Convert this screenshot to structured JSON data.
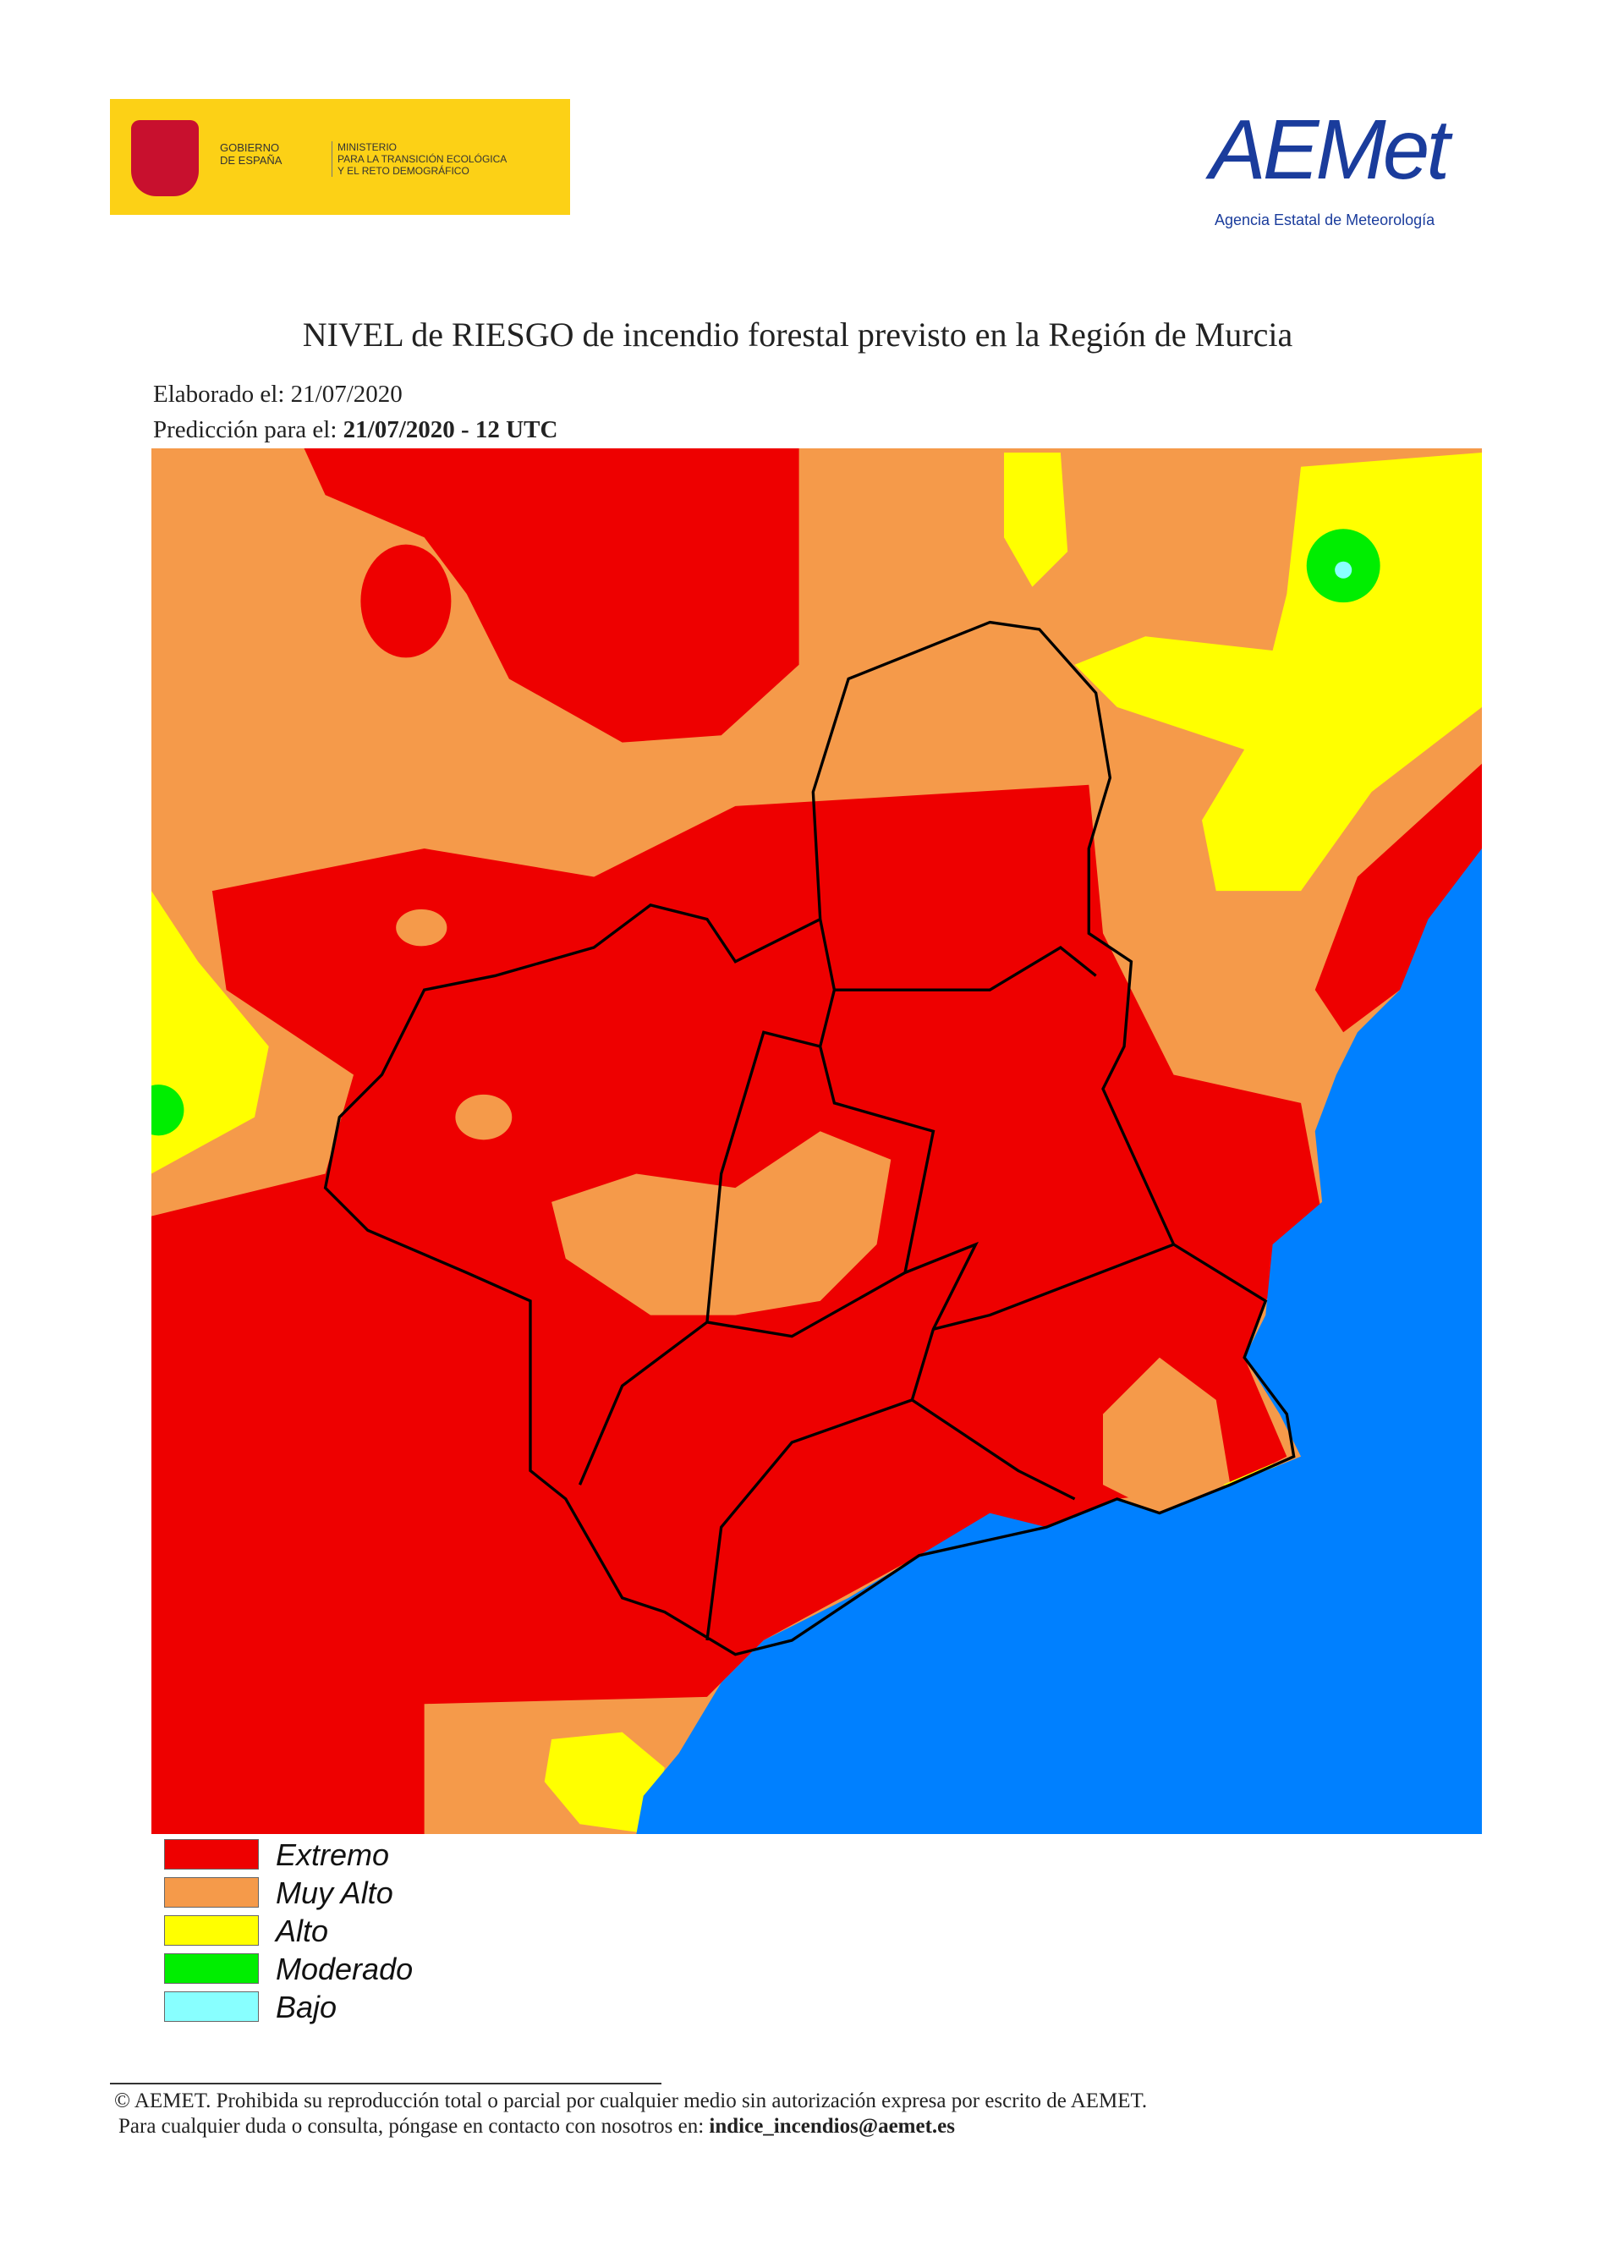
{
  "header": {
    "gov_left": [
      "GOBIERNO",
      "DE ESPAÑA"
    ],
    "gov_right": [
      "MINISTERIO",
      "PARA LA TRANSICIÓN ECOLÓGICA",
      "Y EL RETO DEMOGRÁFICO"
    ],
    "aemet_logo": "AEMet",
    "aemet_name": "Agencia Estatal de Meteorología"
  },
  "title": "NIVEL de RIESGO de incendio forestal previsto en la Región de Murcia",
  "elaborado": {
    "label": "Elaborado el:",
    "date": "21/07/2020"
  },
  "prediccion": {
    "label": "Predicción para el:",
    "value": "21/07/2020 - 12 UTC"
  },
  "legend": [
    {
      "name": "Extremo",
      "color": "#ee0000"
    },
    {
      "name": "Muy Alto",
      "color": "#f59a4a"
    },
    {
      "name": "Alto",
      "color": "#ffff00"
    },
    {
      "name": "Moderado",
      "color": "#00ee00"
    },
    {
      "name": "Bajo",
      "color": "#88ffff"
    }
  ],
  "footer": {
    "line1": "© AEMET. Prohibida su reproducción total o parcial por cualquier medio sin autorización expresa por escrito de AEMET.",
    "line2": "Para cualquier duda o consulta, póngase en contacto con nosotros en:",
    "email": "indice_incendios@aemet.es"
  }
}
